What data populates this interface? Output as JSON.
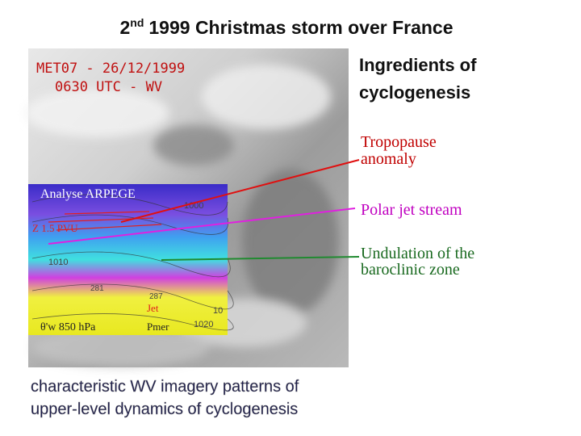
{
  "title": {
    "number": "2",
    "suffix": "nd",
    "text": "1999 Christmas storm over France"
  },
  "image": {
    "line1": "MET07 - 26/12/1999",
    "line2": "0630 UTC - WV"
  },
  "inset": {
    "title": "Analyse ARPEGE",
    "z_label": "Z 1.5 PVU",
    "jet": "Jet",
    "theta": "θ'w 850 hPa",
    "pmer": "Pmer",
    "contours": [
      "1000",
      "1010",
      "1020",
      "287",
      "281",
      "10"
    ]
  },
  "ingredients": {
    "heading": [
      "Ingredients of",
      "cyclogenesis"
    ],
    "items": [
      [
        "Tropopause",
        "anomaly"
      ],
      [
        "Polar jet stream"
      ],
      [
        "Undulation of the",
        "baroclinic zone"
      ]
    ]
  },
  "caption": [
    "characteristic WV imagery patterns of",
    "upper-level dynamics of cyclogenesis"
  ]
}
